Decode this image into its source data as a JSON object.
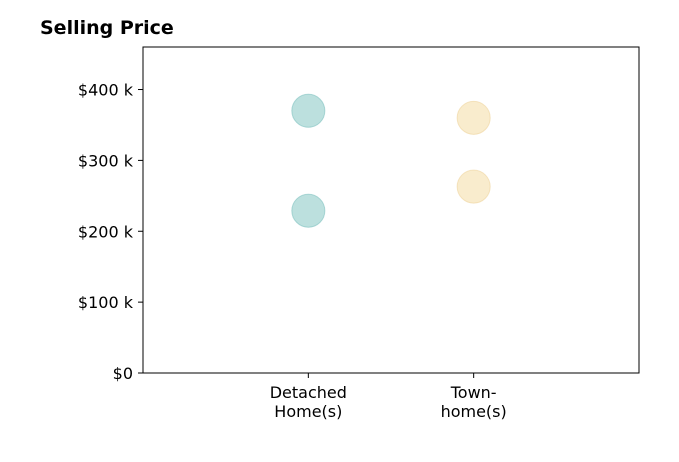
{
  "chart_data": {
    "type": "scatter",
    "title": "Selling Price",
    "xlabel": "",
    "ylabel": "",
    "categories": [
      [
        "Detached",
        "Home(s)"
      ],
      [
        "Town-",
        "home(s)"
      ]
    ],
    "xlim": [
      0,
      3
    ],
    "ylim": [
      0,
      460000
    ],
    "yticks": [
      0,
      100000,
      200000,
      300000,
      400000
    ],
    "ytick_labels": [
      "$0",
      "$100 k",
      "$200 k",
      "$300 k",
      "$400 k"
    ],
    "grid": false,
    "series": [
      {
        "category_index": 0,
        "color": "#9fd3d0",
        "stroke": "#7fc2bf",
        "values": [
          370000,
          229000
        ]
      },
      {
        "category_index": 1,
        "color": "#f7e4b8",
        "stroke": "#efd49c",
        "values": [
          360000,
          263000
        ]
      }
    ]
  }
}
